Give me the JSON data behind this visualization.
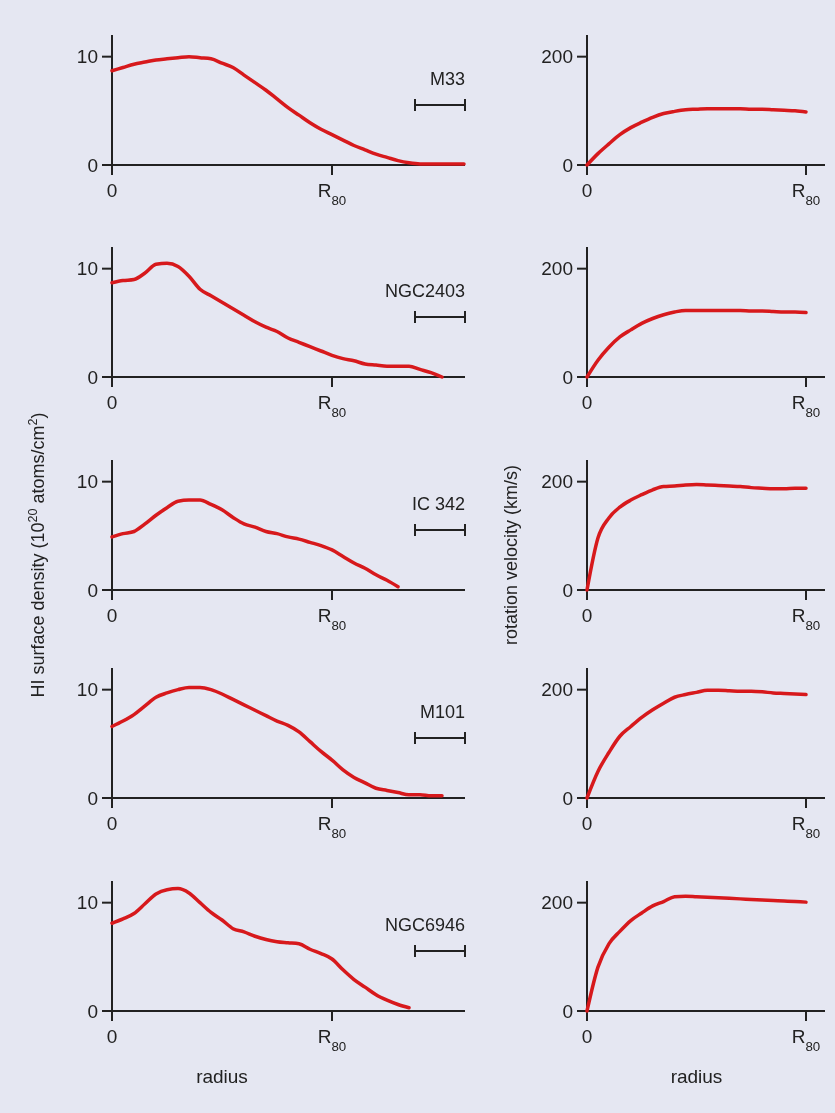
{
  "chart_data": [
    {
      "type": "line",
      "annotations": [
        "M33"
      ],
      "categories": [
        "0",
        null,
        null,
        null,
        null,
        null,
        null,
        null,
        null,
        null,
        null,
        null,
        null,
        null,
        null,
        null,
        null,
        null,
        null,
        null,
        "R$_{80}$",
        null,
        null,
        null,
        null,
        null,
        null,
        null,
        null,
        null,
        null,
        null,
        null
      ],
      "ylim": [
        0,
        12
      ],
      "yticks": [
        0,
        10
      ],
      "series": [
        {
          "color": "#d7191c",
          "values": [
            8.7,
            9.0,
            9.3,
            9.5,
            9.7,
            9.8,
            9.9,
            10.0,
            9.9,
            9.8,
            9.4,
            9.0,
            8.3,
            7.6,
            6.9,
            6.1,
            5.3,
            4.6,
            3.9,
            3.3,
            2.8,
            2.3,
            1.8,
            1.4,
            1.0,
            0.7,
            0.4,
            0.2,
            0.1,
            0.1,
            0.1,
            0.1,
            0.1
          ]
        }
      ]
    },
    {
      "type": "line",
      "categories": [
        "0",
        null,
        null,
        null,
        null,
        null,
        null,
        null,
        null,
        null,
        null,
        null,
        null,
        null,
        null,
        null,
        null,
        null,
        null,
        null,
        "R$_{80}$"
      ],
      "ylim": [
        0,
        240
      ],
      "yticks": [
        0,
        200
      ],
      "series": [
        {
          "color": "#d7191c",
          "values": [
            0,
            21,
            39,
            56,
            69,
            79,
            88,
            95,
            99,
            102,
            103,
            104,
            104,
            104,
            104,
            103,
            103,
            102,
            101,
            100,
            98
          ]
        }
      ]
    },
    {
      "type": "line",
      "annotations": [
        "NGC2403"
      ],
      "categories": [
        "0",
        null,
        null,
        null,
        null,
        null,
        null,
        null,
        null,
        null,
        null,
        null,
        null,
        null,
        null,
        null,
        null,
        null,
        null,
        null,
        "R$_{80}$",
        null,
        null,
        null,
        null,
        null,
        null,
        null,
        null,
        null,
        null,
        null,
        null
      ],
      "ylim": [
        0,
        12
      ],
      "yticks": [
        0,
        10
      ],
      "series": [
        {
          "color": "#d7191c",
          "values": [
            8.7,
            8.9,
            9.0,
            9.6,
            10.4,
            10.5,
            10.2,
            9.3,
            8.1,
            7.5,
            6.9,
            6.3,
            5.7,
            5.1,
            4.6,
            4.2,
            3.6,
            3.2,
            2.8,
            2.4,
            2.0,
            1.7,
            1.5,
            1.2,
            1.1,
            1.0,
            1.0,
            1.0,
            0.7,
            0.4,
            0,
            null,
            null
          ]
        }
      ]
    },
    {
      "type": "line",
      "categories": [
        "0",
        null,
        null,
        null,
        null,
        null,
        null,
        null,
        null,
        null,
        null,
        null,
        null,
        null,
        null,
        null,
        null,
        null,
        null,
        null,
        "R$_{80}$"
      ],
      "ylim": [
        0,
        240
      ],
      "yticks": [
        0,
        200
      ],
      "series": [
        {
          "color": "#d7191c",
          "values": [
            0,
            31,
            55,
            74,
            87,
            99,
            108,
            115,
            120,
            123,
            123,
            123,
            123,
            123,
            123,
            122,
            122,
            121,
            120,
            120,
            119
          ]
        }
      ]
    },
    {
      "type": "line",
      "annotations": [
        "IC 342"
      ],
      "ylabel": "HI surface density (10$^{20}$ atoms/cm$^{2}$)",
      "categories": [
        "0",
        null,
        null,
        null,
        null,
        null,
        null,
        null,
        null,
        null,
        null,
        null,
        null,
        null,
        null,
        null,
        null,
        null,
        null,
        null,
        "R$_{80}$",
        null,
        null,
        null,
        null,
        null,
        null,
        null,
        null,
        null,
        null,
        null,
        null
      ],
      "ylim": [
        0,
        12
      ],
      "yticks": [
        0,
        10
      ],
      "series": [
        {
          "color": "#d7191c",
          "values": [
            4.9,
            5.2,
            5.4,
            6.1,
            6.9,
            7.6,
            8.2,
            8.3,
            8.3,
            7.9,
            7.4,
            6.7,
            6.1,
            5.8,
            5.4,
            5.2,
            4.9,
            4.7,
            4.4,
            4.1,
            3.7,
            3.1,
            2.5,
            2.0,
            1.4,
            0.9,
            0.3,
            null,
            null,
            null,
            null,
            null,
            null
          ]
        }
      ]
    },
    {
      "type": "line",
      "ylabel": "rotation velocity (km/s)",
      "categories": [
        "0",
        null,
        null,
        null,
        null,
        null,
        null,
        null,
        null,
        null,
        null,
        null,
        null,
        null,
        null,
        null,
        null,
        null,
        null,
        null,
        "R$_{80}$"
      ],
      "ylim": [
        0,
        240
      ],
      "yticks": [
        0,
        200
      ],
      "series": [
        {
          "color": "#d7191c",
          "values": [
            0,
            96,
            133,
            153,
            166,
            176,
            185,
            191,
            192,
            194,
            195,
            194,
            193,
            192,
            191,
            189,
            188,
            187,
            187,
            188,
            188
          ]
        }
      ]
    },
    {
      "type": "line",
      "annotations": [
        "M101"
      ],
      "categories": [
        "0",
        null,
        null,
        null,
        null,
        null,
        null,
        null,
        null,
        null,
        null,
        null,
        null,
        null,
        null,
        null,
        null,
        null,
        null,
        null,
        "R$_{80}$",
        null,
        null,
        null,
        null,
        null,
        null,
        null,
        null,
        null,
        null,
        null,
        null
      ],
      "ylim": [
        0,
        12
      ],
      "yticks": [
        0,
        10
      ],
      "series": [
        {
          "color": "#d7191c",
          "values": [
            6.6,
            7.1,
            7.7,
            8.5,
            9.3,
            9.7,
            10.0,
            10.2,
            10.2,
            10.0,
            9.6,
            9.1,
            8.6,
            8.1,
            7.6,
            7.1,
            6.7,
            6.1,
            5.2,
            4.3,
            3.5,
            2.6,
            1.9,
            1.4,
            0.9,
            0.7,
            0.5,
            0.3,
            0.3,
            0.2,
            0.2,
            null,
            null
          ]
        }
      ]
    },
    {
      "type": "line",
      "categories": [
        "0",
        null,
        null,
        null,
        null,
        null,
        null,
        null,
        null,
        null,
        null,
        null,
        null,
        null,
        null,
        null,
        null,
        null,
        null,
        null,
        "R$_{80}$"
      ],
      "ylim": [
        0,
        240
      ],
      "yticks": [
        0,
        200
      ],
      "series": [
        {
          "color": "#d7191c",
          "values": [
            0,
            49,
            84,
            114,
            132,
            149,
            163,
            175,
            186,
            191,
            195,
            199,
            199,
            198,
            197,
            197,
            196,
            194,
            193,
            192,
            191
          ]
        }
      ]
    },
    {
      "type": "line",
      "annotations": [
        "NGC6946"
      ],
      "xlabel": "radius",
      "categories": [
        "0",
        null,
        null,
        null,
        null,
        null,
        null,
        null,
        null,
        null,
        null,
        null,
        null,
        null,
        null,
        null,
        null,
        null,
        null,
        null,
        "R$_{80}$",
        null,
        null,
        null,
        null,
        null,
        null,
        null,
        null,
        null,
        null,
        null,
        null
      ],
      "ylim": [
        0,
        12
      ],
      "yticks": [
        0,
        10
      ],
      "series": [
        {
          "color": "#d7191c",
          "values": [
            8.1,
            8.5,
            9.0,
            9.9,
            10.8,
            11.2,
            11.3,
            10.9,
            10.0,
            9.1,
            8.4,
            7.6,
            7.3,
            6.9,
            6.6,
            6.4,
            6.3,
            6.2,
            5.7,
            5.3,
            4.8,
            3.8,
            2.9,
            2.2,
            1.5,
            1.0,
            0.6,
            0.3,
            null,
            null,
            null,
            null,
            null
          ]
        }
      ]
    },
    {
      "type": "line",
      "xlabel": "radius",
      "categories": [
        "0",
        null,
        null,
        null,
        null,
        null,
        null,
        null,
        null,
        null,
        null,
        null,
        null,
        null,
        null,
        null,
        null,
        null,
        null,
        null,
        "R$_{80}$"
      ],
      "ylim": [
        0,
        240
      ],
      "yticks": [
        0,
        200
      ],
      "series": [
        {
          "color": "#d7191c",
          "values": [
            0,
            81,
            124,
            147,
            167,
            181,
            194,
            202,
            211,
            212,
            211,
            210,
            209,
            208,
            207,
            206,
            205,
            204,
            203,
            202,
            201
          ]
        }
      ]
    }
  ]
}
